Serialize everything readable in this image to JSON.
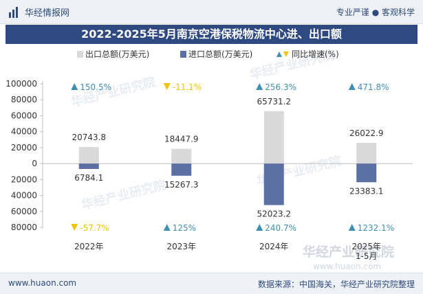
{
  "header": {
    "brand": "华经情报网",
    "slogan": "专业严谨 ● 客观科学"
  },
  "footer": {
    "url": "www.huaon.com",
    "source": "数据来源：中国海关，华经产业研究院整理"
  },
  "watermark": {
    "cn": "华经产业研究院",
    "en": "www.huaon.com"
  },
  "colors": {
    "export": "#d9d9d9",
    "import": "#5b6fa3",
    "up": "#3f8fb0",
    "down": "#f2c200",
    "title_bg": "#2f4a80"
  },
  "chart_data": {
    "type": "bar",
    "title": "2022-2025年5月南京空港保税物流中心进、出口额",
    "categories": [
      "2022年",
      "2023年",
      "2024年",
      "2025年\n1-5月"
    ],
    "legend": [
      "出口总额(万美元)",
      "进口总额(万美元)",
      "同比增速(%)"
    ],
    "series": [
      {
        "name": "出口总额(万美元)",
        "values": [
          20743.8,
          18447.9,
          65731.2,
          26022.9
        ]
      },
      {
        "name": "进口总额(万美元)",
        "values": [
          -6784.1,
          -15267.3,
          -52023.2,
          -23383.1
        ]
      }
    ],
    "export_labels": [
      "20743.8",
      "18447.9",
      "65731.2",
      "26022.9"
    ],
    "import_labels": [
      "6784.1",
      "15267.3",
      "52023.2",
      "23383.1"
    ],
    "export_growth": [
      "150.5%",
      "-11.1%",
      "256.3%",
      "471.8%"
    ],
    "export_growth_dir": [
      "up",
      "down",
      "up",
      "up"
    ],
    "import_growth": [
      "-57.7%",
      "125%",
      "240.7%",
      "1232.1%"
    ],
    "import_growth_dir": [
      "down",
      "up",
      "up",
      "up"
    ],
    "yticks": [
      100000,
      80000,
      60000,
      40000,
      20000,
      0,
      -20000,
      -40000,
      -60000,
      -80000
    ],
    "ytick_labels": [
      "100000",
      "80000",
      "60000",
      "40000",
      "20000",
      "0",
      "20000",
      "40000",
      "60000",
      "80000"
    ],
    "ylim": [
      -80000,
      100000
    ],
    "grid": false,
    "legend_position": "top-center"
  }
}
